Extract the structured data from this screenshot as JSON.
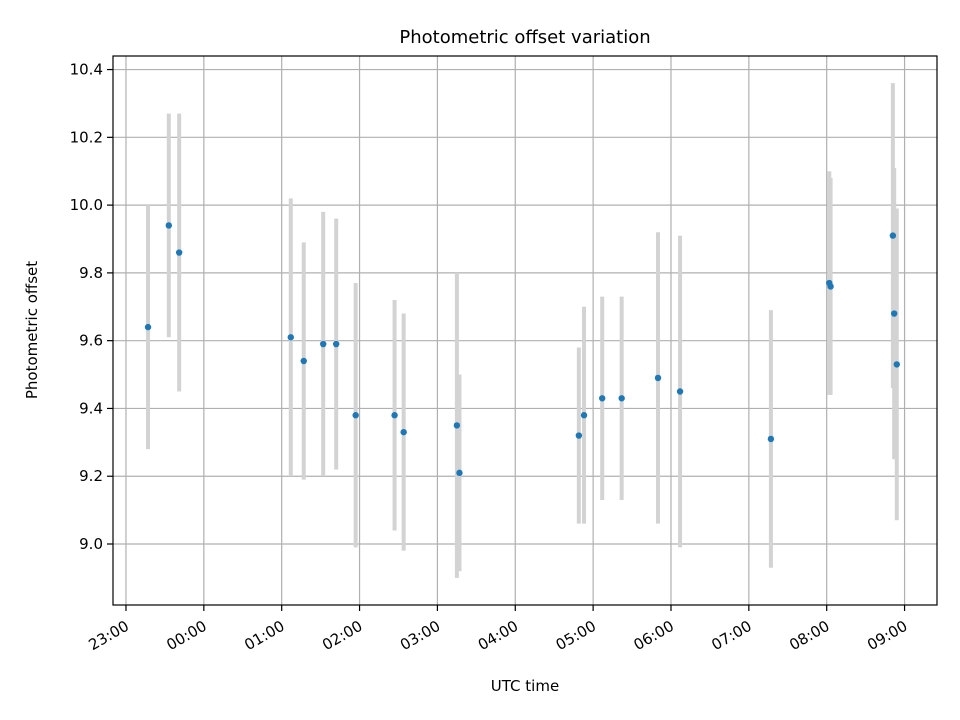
{
  "chart_data": {
    "type": "scatter",
    "title": "Photometric offset variation",
    "xlabel": "UTC time",
    "ylabel": "Photometric offset",
    "x_axis_kind": "time",
    "xlim": [
      "22:50",
      "09:25"
    ],
    "ylim": [
      8.82,
      10.44
    ],
    "x_ticks": [
      "23:00",
      "00:00",
      "01:00",
      "02:00",
      "03:00",
      "04:00",
      "05:00",
      "06:00",
      "07:00",
      "08:00",
      "09:00"
    ],
    "y_ticks": [
      "9.0",
      "9.2",
      "9.4",
      "9.6",
      "9.8",
      "10.0",
      "10.2",
      "10.4"
    ],
    "grid": true,
    "colors": {
      "points": "#1f77b4",
      "error_bars": "#d3d3d3",
      "grid": "#b0b0b0"
    },
    "points": [
      {
        "x": "23:17",
        "y": 9.64,
        "err": 0.36
      },
      {
        "x": "23:33",
        "y": 9.94,
        "err": 0.33
      },
      {
        "x": "23:41",
        "y": 9.86,
        "err": 0.41
      },
      {
        "x": "01:07",
        "y": 9.61,
        "err": 0.41
      },
      {
        "x": "01:17",
        "y": 9.54,
        "err": 0.35
      },
      {
        "x": "01:32",
        "y": 9.59,
        "err": 0.39
      },
      {
        "x": "01:42",
        "y": 9.59,
        "err": 0.37
      },
      {
        "x": "01:57",
        "y": 9.38,
        "err": 0.39
      },
      {
        "x": "02:27",
        "y": 9.38,
        "err": 0.34
      },
      {
        "x": "02:34",
        "y": 9.33,
        "err": 0.35
      },
      {
        "x": "03:15",
        "y": 9.35,
        "err": 0.45
      },
      {
        "x": "03:17",
        "y": 9.21,
        "err": 0.29
      },
      {
        "x": "04:49",
        "y": 9.32,
        "err": 0.26
      },
      {
        "x": "04:53",
        "y": 9.38,
        "err": 0.32
      },
      {
        "x": "05:07",
        "y": 9.43,
        "err": 0.3
      },
      {
        "x": "05:22",
        "y": 9.43,
        "err": 0.3
      },
      {
        "x": "05:50",
        "y": 9.49,
        "err": 0.43
      },
      {
        "x": "06:07",
        "y": 9.45,
        "err": 0.46
      },
      {
        "x": "07:17",
        "y": 9.31,
        "err": 0.38
      },
      {
        "x": "08:02",
        "y": 9.77,
        "err": 0.33
      },
      {
        "x": "08:03",
        "y": 9.76,
        "err": 0.32
      },
      {
        "x": "08:51",
        "y": 9.91,
        "err": 0.45
      },
      {
        "x": "08:52",
        "y": 9.68,
        "err": 0.43
      },
      {
        "x": "08:54",
        "y": 9.53,
        "err": 0.46
      }
    ]
  }
}
